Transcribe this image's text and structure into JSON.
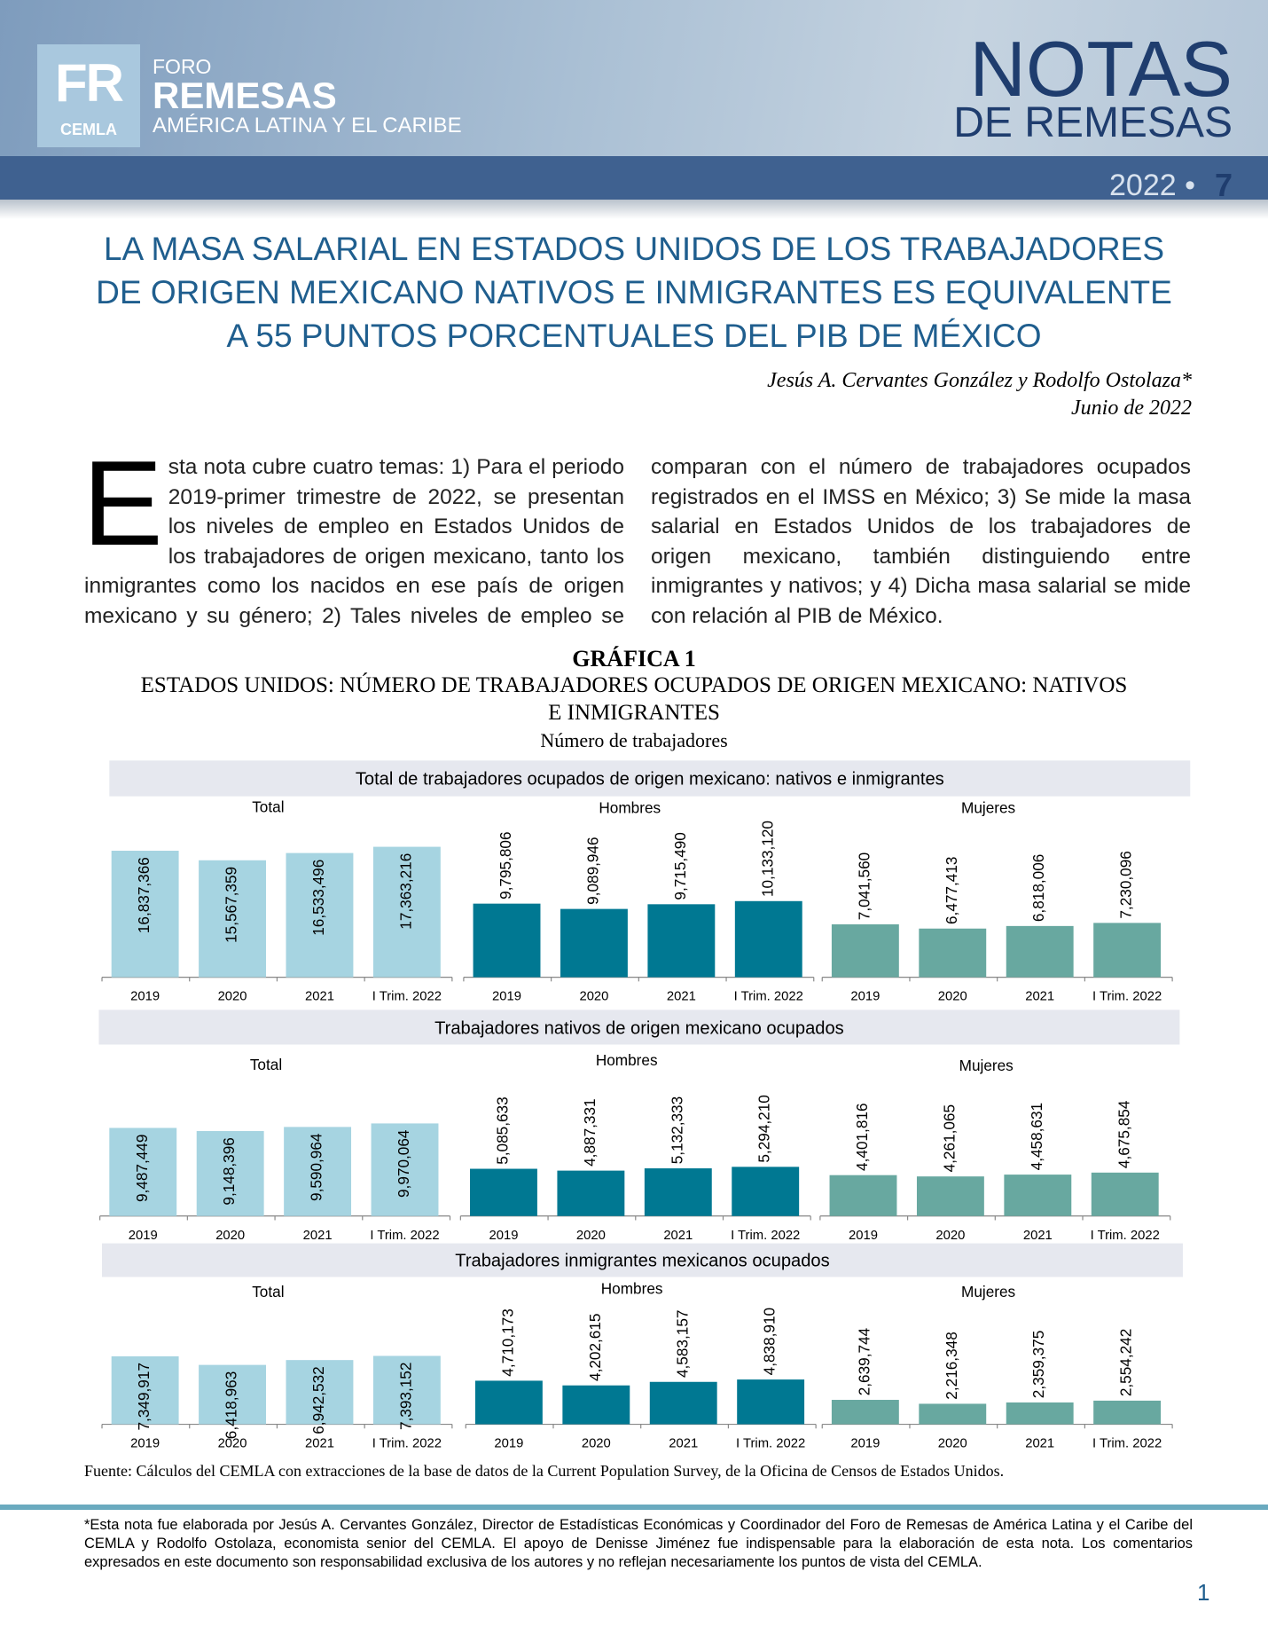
{
  "header": {
    "logo_initials": "FR",
    "logo_org": "CEMLA",
    "brand_top": "FORO",
    "brand_main": "REMESAS",
    "brand_sub": "AMÉRICA LATINA Y EL CARIBE",
    "series_title": "NOTAS",
    "series_subtitle": "DE REMESAS",
    "year": "2022 •",
    "issue": "7"
  },
  "title": [
    "LA MASA SALARIAL EN ESTADOS UNIDOS DE LOS TRABAJADORES",
    "DE ORIGEN MEXICANO NATIVOS E INMIGRANTES ES EQUIVALENTE",
    "A 55 PUNTOS PORCENTUALES DEL PIB DE MÉXICO"
  ],
  "authors": "Jesús A. Cervantes González y Rodolfo Ostolaza*",
  "date": "Junio de 2022",
  "body": {
    "drop_cap": "E",
    "text": "sta nota cubre cuatro temas: 1) Para el periodo 2019-primer trimestre de 2022, se presentan los niveles de empleo en Estados Unidos de los trabajadores de origen mexicano, tanto los inmigrantes como los nacidos en ese país de origen mexicano y su género; 2) Tales niveles de empleo se comparan con el número de trabajadores ocupados registrados en el IMSS en México; 3) Se mide la masa salarial en Estados Unidos de los trabajadores de origen mexicano, también distinguiendo entre inmigrantes y nativos; y 4) Dicha masa salarial se mide con relación al PIB de México."
  },
  "figure": {
    "label": "GRÁFICA 1",
    "title": [
      "ESTADOS UNIDOS: NÚMERO DE TRABAJADORES OCUPADOS DE ORIGEN MEXICANO: NATIVOS",
      "E INMIGRANTES"
    ],
    "unit": "Número de trabajadores",
    "categories": [
      "2019",
      "2020",
      "2021",
      "I Trim. 2022"
    ],
    "groups": [
      {
        "title": "Total de trabajadores ocupados de origen mexicano: nativos e inmigrantes",
        "panels": [
          {
            "title": "Total",
            "type": "bar",
            "color": "#a6d4e1",
            "values": [
              16837366,
              15567359,
              16533496,
              17363216
            ],
            "value_labels": [
              "16,837,366",
              "15,567,359",
              "16,533,496",
              "17,363,216"
            ]
          },
          {
            "title": "Hombres",
            "type": "bar",
            "color": "#007892",
            "values": [
              9795806,
              9089946,
              9715490,
              10133120
            ],
            "value_labels": [
              "9,795,806",
              "9,089,946",
              "9,715,490",
              "10,133,120"
            ]
          },
          {
            "title": "Mujeres",
            "type": "bar",
            "color": "#68a8a0",
            "values": [
              7041560,
              6477413,
              6818006,
              7230096
            ],
            "value_labels": [
              "7,041,560",
              "6,477,413",
              "6,818,006",
              "7,230,096"
            ]
          }
        ]
      },
      {
        "title": "Trabajadores nativos de origen mexicano ocupados",
        "panels": [
          {
            "title": "Total",
            "type": "bar",
            "color": "#a6d4e1",
            "values": [
              9487449,
              9148396,
              9590964,
              9970064
            ],
            "value_labels": [
              "9,487,449",
              "9,148,396",
              "9,590,964",
              "9,970,064"
            ]
          },
          {
            "title": "Hombres",
            "type": "bar",
            "color": "#007892",
            "values": [
              5085633,
              4887331,
              5132333,
              5294210
            ],
            "value_labels": [
              "5,085,633",
              "4,887,331",
              "5,132,333",
              "5,294,210"
            ]
          },
          {
            "title": "Mujeres",
            "type": "bar",
            "color": "#68a8a0",
            "values": [
              4401816,
              4261065,
              4458631,
              4675854
            ],
            "value_labels": [
              "4,401,816",
              "4,261,065",
              "4,458,631",
              "4,675,854"
            ]
          }
        ]
      },
      {
        "title": "Trabajadores inmigrantes mexicanos ocupados",
        "panels": [
          {
            "title": "Total",
            "type": "bar",
            "color": "#a6d4e1",
            "values": [
              7349917,
              6418963,
              6942532,
              7393152
            ],
            "value_labels": [
              "7,349,917",
              "6,418,963",
              "6,942,532",
              "7,393,152"
            ]
          },
          {
            "title": "Hombres",
            "type": "bar",
            "color": "#007892",
            "values": [
              4710173,
              4202615,
              4583157,
              4838910
            ],
            "value_labels": [
              "4,710,173",
              "4,202,615",
              "4,583,157",
              "4,838,910"
            ]
          },
          {
            "title": "Mujeres",
            "type": "bar",
            "color": "#68a8a0",
            "values": [
              2639744,
              2216348,
              2359375,
              2554242
            ],
            "value_labels": [
              "2,639,744",
              "2,216,348",
              "2,359,375",
              "2,554,242"
            ]
          }
        ]
      }
    ],
    "source": "Fuente: Cálculos del CEMLA con extracciones de la base de datos de la Current Population Survey, de la Oficina de Censos de Estados Unidos."
  },
  "footnote": "*Esta nota fue elaborada por Jesús A. Cervantes González, Director de Estadísticas Económicas y Coordinador del Foro de Remesas de América Latina y el Caribe del CEMLA y Rodolfo Ostolaza, economista senior del CEMLA. El apoyo de Denisse Jiménez fue indispensable para la elaboración de esta nota. Los comentarios expresados en este documento son responsabilidad exclusiva de los autores y no reflejan necesariamente los puntos de vista del CEMLA.",
  "page_number": "1"
}
